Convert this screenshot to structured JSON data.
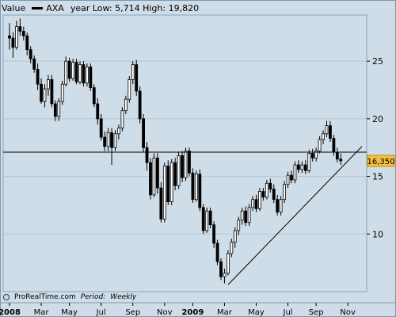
{
  "legend": {
    "value_label": "Value",
    "ticker": "AXA",
    "range_text": "year Low: 5,714 High: 19,820"
  },
  "footer": {
    "source": "ProRealTime.com",
    "period_label": "Period:",
    "period_value": "Weekly"
  },
  "colors": {
    "background": "#cfdde8",
    "up_candle": "#ffffff",
    "down_candle": "#000000",
    "grid": "#b4c6d5",
    "price_tag": "#f5c13a"
  },
  "chart_data": {
    "type": "candlestick",
    "title": "",
    "series_name": "AXA",
    "period": "Weekly",
    "ylim": [
      5,
      29
    ],
    "yticks": [
      10,
      15,
      20,
      25
    ],
    "ytick_labels": [
      "10",
      "15",
      "20",
      "25"
    ],
    "x_labels": [
      "2008",
      "Mar",
      "May",
      "Jul",
      "Sep",
      "Nov",
      "2009",
      "Mar",
      "May",
      "Jul",
      "Sep",
      "Nov"
    ],
    "x_label_weeks": [
      0,
      9,
      17,
      26,
      35,
      44,
      52,
      61,
      70,
      79,
      87,
      96
    ],
    "current_price": 16.35,
    "current_price_label": "16,350",
    "horizontal_line": 17.1,
    "trendline": {
      "start": {
        "week": 62,
        "price": 5.6
      },
      "end": {
        "week": 100,
        "price": 17.6
      }
    },
    "candles": [
      {
        "o": 27.2,
        "h": 28.3,
        "l": 26.0,
        "c": 27.0
      },
      {
        "o": 27.0,
        "h": 27.5,
        "l": 25.3,
        "c": 26.2
      },
      {
        "o": 26.2,
        "h": 28.5,
        "l": 26.0,
        "c": 28.0
      },
      {
        "o": 28.0,
        "h": 28.7,
        "l": 27.2,
        "c": 27.6
      },
      {
        "o": 27.6,
        "h": 28.0,
        "l": 26.8,
        "c": 27.2
      },
      {
        "o": 27.2,
        "h": 27.5,
        "l": 25.5,
        "c": 26.0
      },
      {
        "o": 26.0,
        "h": 26.3,
        "l": 24.8,
        "c": 25.2
      },
      {
        "o": 25.2,
        "h": 25.5,
        "l": 24.0,
        "c": 24.3
      },
      {
        "o": 24.3,
        "h": 24.8,
        "l": 22.5,
        "c": 23.0
      },
      {
        "o": 23.0,
        "h": 23.5,
        "l": 21.3,
        "c": 21.5
      },
      {
        "o": 21.5,
        "h": 23.0,
        "l": 21.0,
        "c": 22.6
      },
      {
        "o": 22.6,
        "h": 23.8,
        "l": 22.0,
        "c": 23.4
      },
      {
        "o": 23.4,
        "h": 23.8,
        "l": 21.0,
        "c": 21.3
      },
      {
        "o": 21.3,
        "h": 21.6,
        "l": 19.8,
        "c": 20.2
      },
      {
        "o": 20.2,
        "h": 21.8,
        "l": 19.8,
        "c": 21.5
      },
      {
        "o": 21.5,
        "h": 23.3,
        "l": 21.2,
        "c": 23.0
      },
      {
        "o": 23.0,
        "h": 25.4,
        "l": 22.8,
        "c": 25.0
      },
      {
        "o": 25.0,
        "h": 25.3,
        "l": 23.2,
        "c": 23.5
      },
      {
        "o": 23.5,
        "h": 25.2,
        "l": 23.3,
        "c": 24.9
      },
      {
        "o": 24.9,
        "h": 25.2,
        "l": 23.0,
        "c": 23.2
      },
      {
        "o": 23.2,
        "h": 25.0,
        "l": 23.0,
        "c": 24.7
      },
      {
        "o": 24.7,
        "h": 25.0,
        "l": 22.8,
        "c": 23.1
      },
      {
        "o": 23.1,
        "h": 24.8,
        "l": 22.8,
        "c": 24.5
      },
      {
        "o": 24.5,
        "h": 24.8,
        "l": 22.4,
        "c": 22.7
      },
      {
        "o": 22.7,
        "h": 23.0,
        "l": 21.0,
        "c": 21.3
      },
      {
        "o": 21.3,
        "h": 21.8,
        "l": 19.5,
        "c": 20.0
      },
      {
        "o": 20.0,
        "h": 20.4,
        "l": 18.1,
        "c": 18.4
      },
      {
        "o": 18.4,
        "h": 18.9,
        "l": 17.2,
        "c": 17.6
      },
      {
        "o": 17.6,
        "h": 19.2,
        "l": 17.2,
        "c": 18.8
      },
      {
        "o": 18.8,
        "h": 19.2,
        "l": 16.0,
        "c": 17.5
      },
      {
        "o": 17.5,
        "h": 19.0,
        "l": 17.2,
        "c": 18.7
      },
      {
        "o": 18.7,
        "h": 19.5,
        "l": 18.2,
        "c": 19.2
      },
      {
        "o": 19.2,
        "h": 21.0,
        "l": 18.9,
        "c": 20.7
      },
      {
        "o": 20.7,
        "h": 22.0,
        "l": 20.4,
        "c": 21.7
      },
      {
        "o": 21.7,
        "h": 23.7,
        "l": 21.4,
        "c": 23.4
      },
      {
        "o": 23.4,
        "h": 25.0,
        "l": 23.0,
        "c": 24.7
      },
      {
        "o": 24.7,
        "h": 25.1,
        "l": 22.0,
        "c": 22.4
      },
      {
        "o": 22.4,
        "h": 22.8,
        "l": 19.6,
        "c": 20.0
      },
      {
        "o": 20.0,
        "h": 20.4,
        "l": 17.1,
        "c": 17.5
      },
      {
        "o": 17.5,
        "h": 18.0,
        "l": 15.5,
        "c": 16.2
      },
      {
        "o": 16.2,
        "h": 16.6,
        "l": 13.0,
        "c": 13.4
      },
      {
        "o": 13.4,
        "h": 17.0,
        "l": 13.2,
        "c": 16.6
      },
      {
        "o": 16.6,
        "h": 17.0,
        "l": 13.5,
        "c": 14.0
      },
      {
        "o": 14.0,
        "h": 14.5,
        "l": 11.0,
        "c": 11.3
      },
      {
        "o": 11.3,
        "h": 16.2,
        "l": 11.0,
        "c": 15.9
      },
      {
        "o": 15.9,
        "h": 16.4,
        "l": 12.5,
        "c": 12.8
      },
      {
        "o": 12.8,
        "h": 16.5,
        "l": 12.5,
        "c": 16.2
      },
      {
        "o": 16.2,
        "h": 16.6,
        "l": 13.8,
        "c": 14.2
      },
      {
        "o": 14.2,
        "h": 17.1,
        "l": 13.9,
        "c": 16.8
      },
      {
        "o": 16.8,
        "h": 17.2,
        "l": 14.5,
        "c": 14.9
      },
      {
        "o": 14.9,
        "h": 17.5,
        "l": 14.6,
        "c": 17.2
      },
      {
        "o": 17.2,
        "h": 17.5,
        "l": 15.0,
        "c": 15.3
      },
      {
        "o": 15.3,
        "h": 15.7,
        "l": 12.7,
        "c": 13.0
      },
      {
        "o": 13.0,
        "h": 15.5,
        "l": 12.8,
        "c": 15.2
      },
      {
        "o": 15.2,
        "h": 15.6,
        "l": 12.0,
        "c": 12.3
      },
      {
        "o": 12.3,
        "h": 12.6,
        "l": 10.0,
        "c": 10.3
      },
      {
        "o": 10.3,
        "h": 12.3,
        "l": 10.1,
        "c": 12.0
      },
      {
        "o": 12.0,
        "h": 12.3,
        "l": 10.5,
        "c": 10.8
      },
      {
        "o": 10.8,
        "h": 11.1,
        "l": 8.8,
        "c": 9.2
      },
      {
        "o": 9.2,
        "h": 9.5,
        "l": 7.3,
        "c": 7.6
      },
      {
        "o": 7.6,
        "h": 7.9,
        "l": 6.0,
        "c": 6.3
      },
      {
        "o": 6.3,
        "h": 7.0,
        "l": 5.714,
        "c": 6.6
      },
      {
        "o": 6.6,
        "h": 8.6,
        "l": 6.4,
        "c": 8.3
      },
      {
        "o": 8.3,
        "h": 9.6,
        "l": 8.0,
        "c": 9.3
      },
      {
        "o": 9.3,
        "h": 10.6,
        "l": 8.8,
        "c": 10.3
      },
      {
        "o": 10.3,
        "h": 11.5,
        "l": 9.9,
        "c": 11.2
      },
      {
        "o": 11.2,
        "h": 12.3,
        "l": 10.8,
        "c": 12.0
      },
      {
        "o": 12.0,
        "h": 12.4,
        "l": 10.7,
        "c": 11.0
      },
      {
        "o": 11.0,
        "h": 12.6,
        "l": 10.7,
        "c": 12.3
      },
      {
        "o": 12.3,
        "h": 13.3,
        "l": 12.0,
        "c": 13.0
      },
      {
        "o": 13.0,
        "h": 13.4,
        "l": 11.9,
        "c": 12.2
      },
      {
        "o": 12.2,
        "h": 14.0,
        "l": 12.0,
        "c": 13.7
      },
      {
        "o": 13.7,
        "h": 14.0,
        "l": 12.9,
        "c": 13.2
      },
      {
        "o": 13.2,
        "h": 14.7,
        "l": 13.0,
        "c": 14.4
      },
      {
        "o": 14.4,
        "h": 14.8,
        "l": 13.6,
        "c": 13.9
      },
      {
        "o": 13.9,
        "h": 14.3,
        "l": 12.7,
        "c": 13.0
      },
      {
        "o": 13.0,
        "h": 13.4,
        "l": 11.6,
        "c": 11.9
      },
      {
        "o": 11.9,
        "h": 13.3,
        "l": 11.6,
        "c": 13.0
      },
      {
        "o": 13.0,
        "h": 14.6,
        "l": 12.7,
        "c": 14.3
      },
      {
        "o": 14.3,
        "h": 15.4,
        "l": 14.0,
        "c": 15.1
      },
      {
        "o": 15.1,
        "h": 15.5,
        "l": 14.4,
        "c": 14.7
      },
      {
        "o": 14.7,
        "h": 16.3,
        "l": 14.4,
        "c": 16.0
      },
      {
        "o": 16.0,
        "h": 16.4,
        "l": 15.3,
        "c": 15.6
      },
      {
        "o": 15.6,
        "h": 16.3,
        "l": 15.3,
        "c": 16.0
      },
      {
        "o": 16.0,
        "h": 16.4,
        "l": 15.2,
        "c": 15.5
      },
      {
        "o": 15.5,
        "h": 17.3,
        "l": 15.3,
        "c": 17.0
      },
      {
        "o": 17.0,
        "h": 17.4,
        "l": 16.3,
        "c": 16.6
      },
      {
        "o": 16.6,
        "h": 17.5,
        "l": 16.3,
        "c": 17.2
      },
      {
        "o": 17.2,
        "h": 18.5,
        "l": 17.0,
        "c": 18.2
      },
      {
        "o": 18.2,
        "h": 19.0,
        "l": 17.8,
        "c": 18.7
      },
      {
        "o": 18.7,
        "h": 19.82,
        "l": 18.4,
        "c": 19.4
      },
      {
        "o": 19.4,
        "h": 19.8,
        "l": 18.0,
        "c": 18.3
      },
      {
        "o": 18.3,
        "h": 18.6,
        "l": 16.8,
        "c": 17.1
      },
      {
        "o": 17.1,
        "h": 17.5,
        "l": 16.2,
        "c": 16.5
      },
      {
        "o": 16.5,
        "h": 17.0,
        "l": 16.0,
        "c": 16.35
      }
    ]
  }
}
